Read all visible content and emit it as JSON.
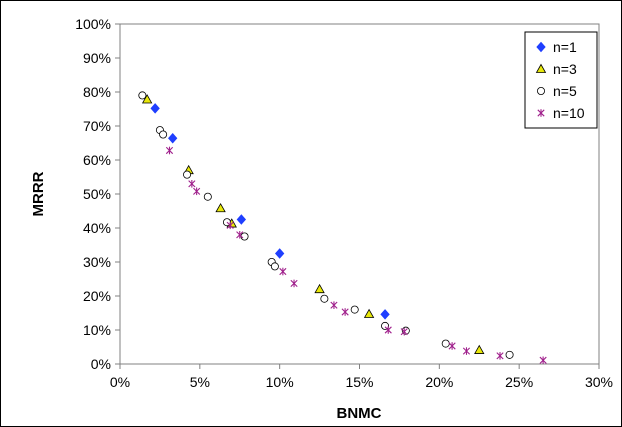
{
  "chart_data": {
    "type": "scatter",
    "title": "",
    "xlabel": "BNMC",
    "ylabel": "MRRR",
    "xlim": [
      0,
      0.3
    ],
    "ylim": [
      0,
      1.0
    ],
    "x_ticks": [
      "0%",
      "5%",
      "10%",
      "15%",
      "20%",
      "25%",
      "30%"
    ],
    "y_ticks": [
      "0%",
      "10%",
      "20%",
      "30%",
      "40%",
      "50%",
      "60%",
      "70%",
      "80%",
      "90%",
      "100%"
    ],
    "grid": false,
    "legend_position": "top-right",
    "series": [
      {
        "name": "n=1",
        "marker": "diamond",
        "color": "#1f3fff",
        "points": [
          [
            0.022,
            0.752
          ],
          [
            0.033,
            0.664
          ],
          [
            0.076,
            0.425
          ],
          [
            0.1,
            0.325
          ],
          [
            0.166,
            0.146
          ]
        ]
      },
      {
        "name": "n=3",
        "marker": "triangle",
        "color": "#e8e80a",
        "points": [
          [
            0.017,
            0.778
          ],
          [
            0.043,
            0.57
          ],
          [
            0.063,
            0.458
          ],
          [
            0.07,
            0.413
          ],
          [
            0.125,
            0.22
          ],
          [
            0.156,
            0.147
          ],
          [
            0.225,
            0.041
          ]
        ]
      },
      {
        "name": "n=5",
        "marker": "circle",
        "color": "#ffffff",
        "points": [
          [
            0.014,
            0.79
          ],
          [
            0.025,
            0.688
          ],
          [
            0.027,
            0.675
          ],
          [
            0.042,
            0.557
          ],
          [
            0.055,
            0.492
          ],
          [
            0.067,
            0.417
          ],
          [
            0.078,
            0.375
          ],
          [
            0.095,
            0.3
          ],
          [
            0.097,
            0.287
          ],
          [
            0.128,
            0.192
          ],
          [
            0.147,
            0.16
          ],
          [
            0.166,
            0.112
          ],
          [
            0.179,
            0.098
          ],
          [
            0.204,
            0.06
          ],
          [
            0.244,
            0.027
          ]
        ]
      },
      {
        "name": "n=10",
        "marker": "asterisk",
        "color": "#a0208c",
        "points": [
          [
            0.031,
            0.628
          ],
          [
            0.045,
            0.53
          ],
          [
            0.048,
            0.508
          ],
          [
            0.069,
            0.408
          ],
          [
            0.075,
            0.38
          ],
          [
            0.102,
            0.272
          ],
          [
            0.109,
            0.237
          ],
          [
            0.134,
            0.173
          ],
          [
            0.141,
            0.153
          ],
          [
            0.168,
            0.1
          ],
          [
            0.178,
            0.095
          ],
          [
            0.208,
            0.053
          ],
          [
            0.217,
            0.038
          ],
          [
            0.238,
            0.024
          ],
          [
            0.265,
            0.011
          ]
        ]
      }
    ]
  }
}
